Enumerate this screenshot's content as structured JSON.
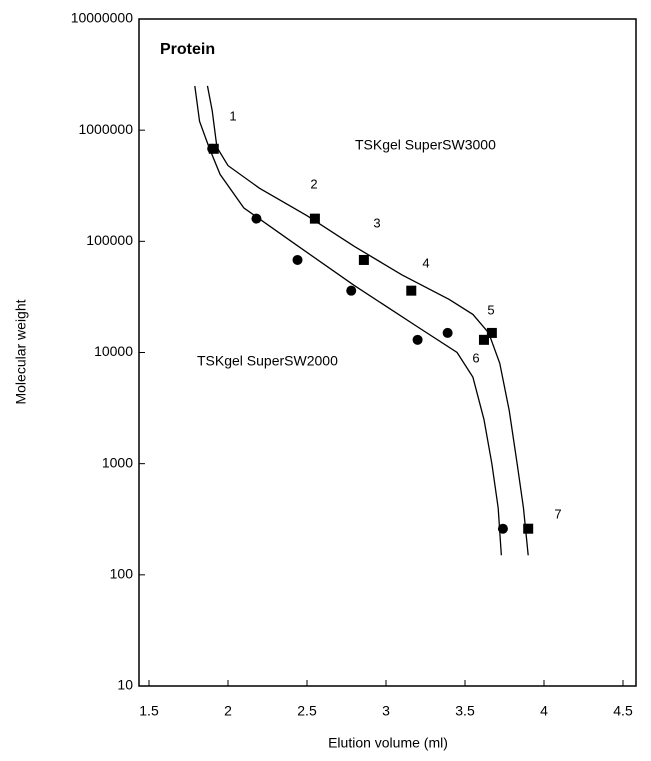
{
  "chart_data": {
    "type": "scatter",
    "title": "Protein",
    "x_label": "Elution  volume (ml)",
    "y_label": "Molecular weight",
    "xlim": [
      1.5,
      4.5
    ],
    "xticks": [
      1.5,
      2,
      2.5,
      3,
      3.5,
      4,
      4.5
    ],
    "ylim": [
      10,
      10000000
    ],
    "yticks": [
      10,
      100,
      1000,
      10000,
      100000,
      1000000,
      10000000
    ],
    "log_y": true,
    "grid": false,
    "series": [
      {
        "name": "TSKgel SuperSW3000",
        "marker": "square",
        "color": "#000000",
        "x": [
          1.91,
          2.55,
          2.86,
          3.16,
          3.62,
          3.67,
          3.9
        ],
        "values": [
          680000,
          160000,
          68000,
          36000,
          13000,
          15000,
          260
        ],
        "curve_x": [
          1.87,
          1.9,
          1.93,
          2.0,
          2.2,
          2.5,
          2.8,
          3.1,
          3.4,
          3.55,
          3.65,
          3.72,
          3.78,
          3.83,
          3.87,
          3.9
        ],
        "curve_y": [
          2500000,
          1500000,
          700000,
          480000,
          300000,
          170000,
          90000,
          50000,
          30000,
          22000,
          15000,
          8000,
          3000,
          1000,
          400,
          150
        ]
      },
      {
        "name": "TSKgel SuperSW2000",
        "marker": "circle",
        "color": "#000000",
        "x": [
          1.9,
          2.18,
          2.44,
          2.78,
          3.2,
          3.39,
          3.74
        ],
        "values": [
          680000,
          160000,
          68000,
          36000,
          13000,
          15000,
          260
        ],
        "curve_x": [
          1.79,
          1.82,
          1.88,
          1.95,
          2.1,
          2.4,
          2.8,
          3.2,
          3.45,
          3.55,
          3.62,
          3.67,
          3.71,
          3.73
        ],
        "curve_y": [
          2500000,
          1200000,
          700000,
          400000,
          200000,
          100000,
          40000,
          17000,
          10000,
          6000,
          2500,
          1000,
          400,
          150
        ]
      }
    ],
    "annotations": [
      "1",
      "2",
      "3",
      "4",
      "5",
      "6",
      "7"
    ]
  }
}
